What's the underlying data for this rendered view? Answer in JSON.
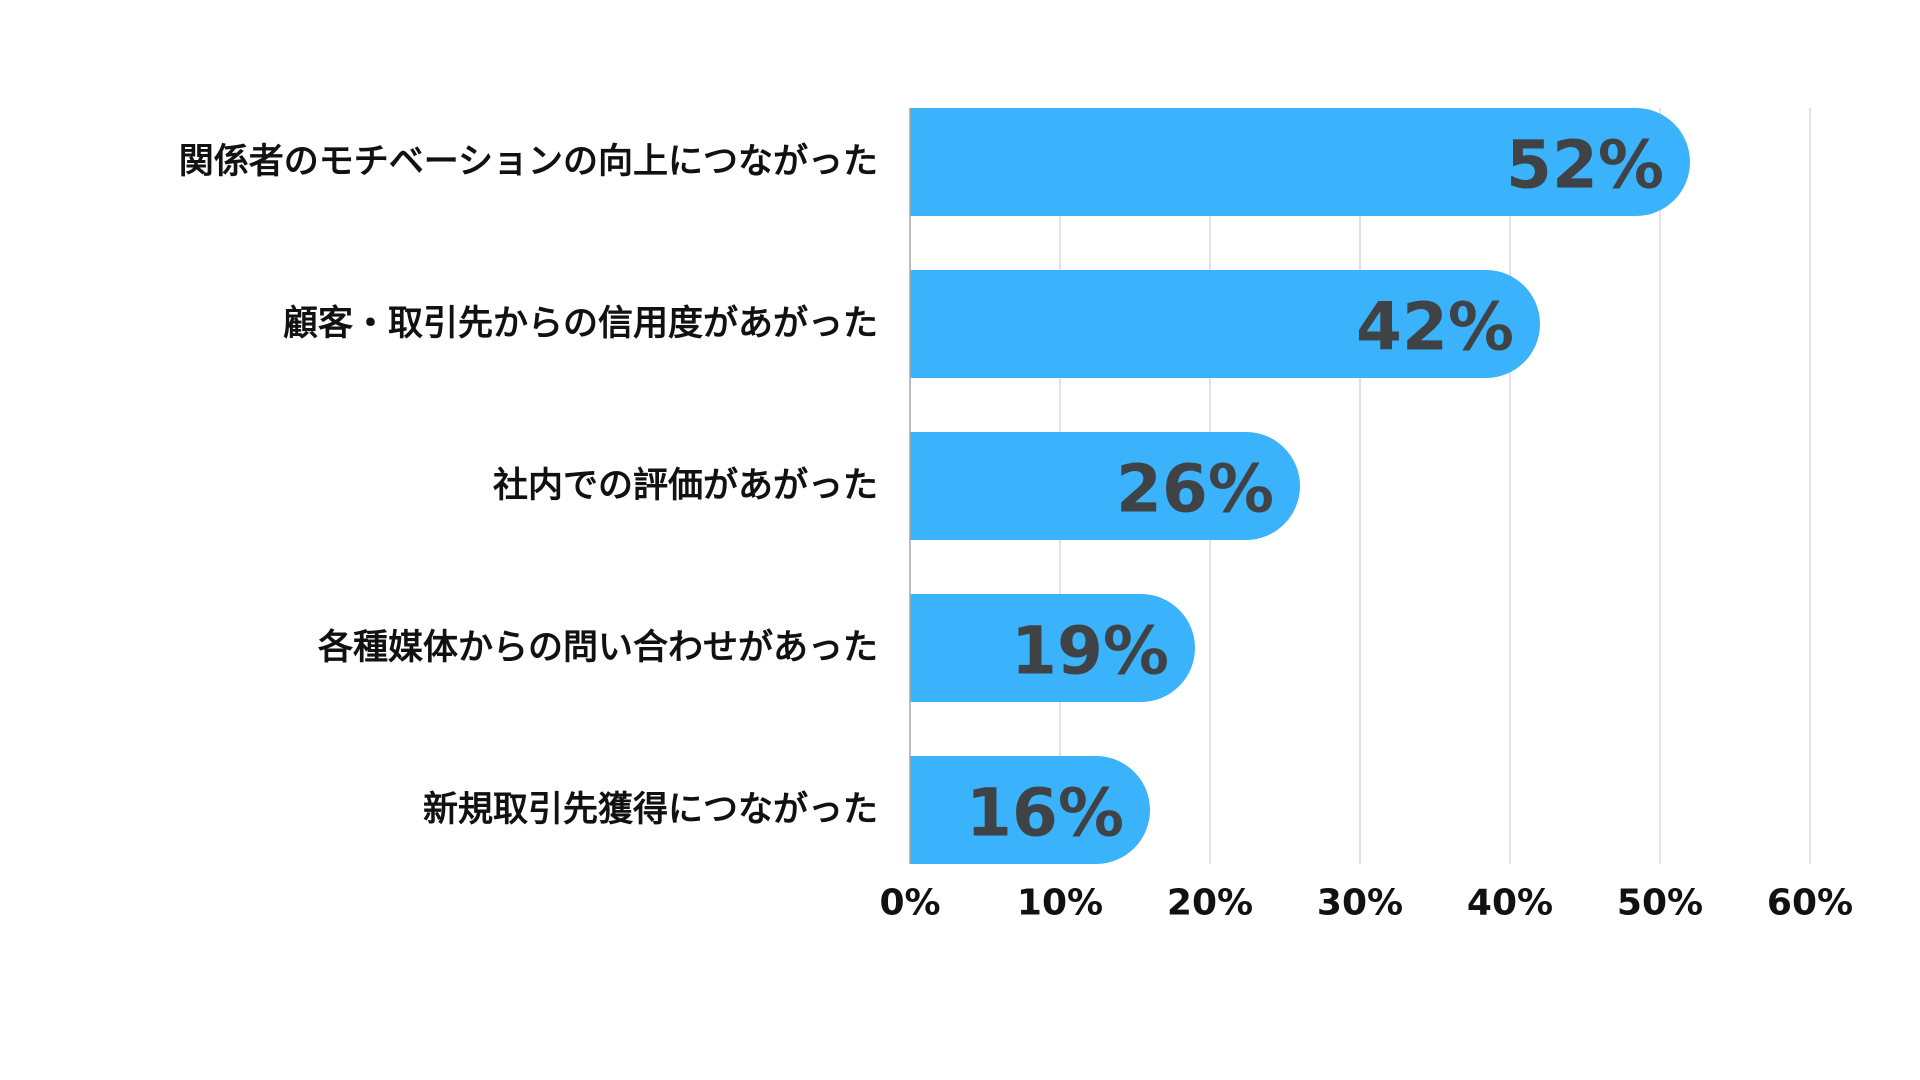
{
  "chart_data": {
    "type": "bar",
    "orientation": "horizontal",
    "categories": [
      "関係者のモチベーションの向上につながった",
      "顧客・取引先からの信用度があがった",
      "社内での評価があがった",
      "各種媒体からの問い合わせがあった",
      "新規取引先獲得につながった"
    ],
    "values": [
      52,
      42,
      26,
      19,
      16
    ],
    "data_labels": [
      "52%",
      "42%",
      "26%",
      "19%",
      "16%"
    ],
    "xlim": [
      0,
      60
    ],
    "x_ticks": [
      0,
      10,
      20,
      30,
      40,
      50,
      60
    ],
    "x_tick_labels": [
      "0%",
      "10%",
      "20%",
      "30%",
      "40%",
      "50%",
      "60%"
    ],
    "grid": "vertical",
    "legend": "none",
    "title": "",
    "xlabel": "",
    "ylabel": "",
    "colors": {
      "bar": "#3bb3fc",
      "data_label": "#3f4346",
      "text": "#111111",
      "grid": "#d9d9d9",
      "axis": "#a6a6a6"
    }
  }
}
